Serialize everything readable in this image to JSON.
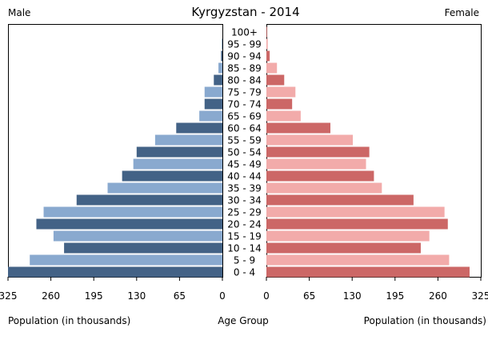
{
  "chart_data": {
    "type": "bar",
    "title": "Kyrgyzstan - 2014",
    "left_label": "Male",
    "right_label": "Female",
    "xlabel_left": "Population (in thousands)",
    "xlabel_center": "Age Group",
    "xlabel_right": "Population (in thousands)",
    "xlim": [
      0,
      325
    ],
    "ticks": [
      0,
      65,
      130,
      195,
      260,
      325
    ],
    "legend": "none",
    "categories": [
      "0 - 4",
      "5 - 9",
      "10 - 14",
      "15 - 19",
      "20 - 24",
      "25 - 29",
      "30 - 34",
      "35 - 39",
      "40 - 44",
      "45 - 49",
      "50 - 54",
      "55 - 59",
      "60 - 64",
      "65 - 69",
      "70 - 74",
      "75 - 79",
      "80 - 84",
      "85 - 89",
      "90 - 94",
      "95 - 99",
      "100+"
    ],
    "series": [
      {
        "name": "Male",
        "values": [
          325,
          292,
          240,
          256,
          282,
          271,
          221,
          174,
          152,
          135,
          130,
          102,
          70,
          35,
          27,
          27,
          13,
          6,
          2,
          1,
          0
        ]
      },
      {
        "name": "Female",
        "values": [
          308,
          277,
          234,
          247,
          275,
          270,
          223,
          175,
          163,
          151,
          156,
          131,
          97,
          52,
          39,
          44,
          27,
          16,
          5,
          2,
          1
        ]
      }
    ],
    "colors": {
      "male_dark": "#436286",
      "male_light": "#89a9cf",
      "female_dark": "#cc6766",
      "female_light": "#f2abaa"
    }
  }
}
